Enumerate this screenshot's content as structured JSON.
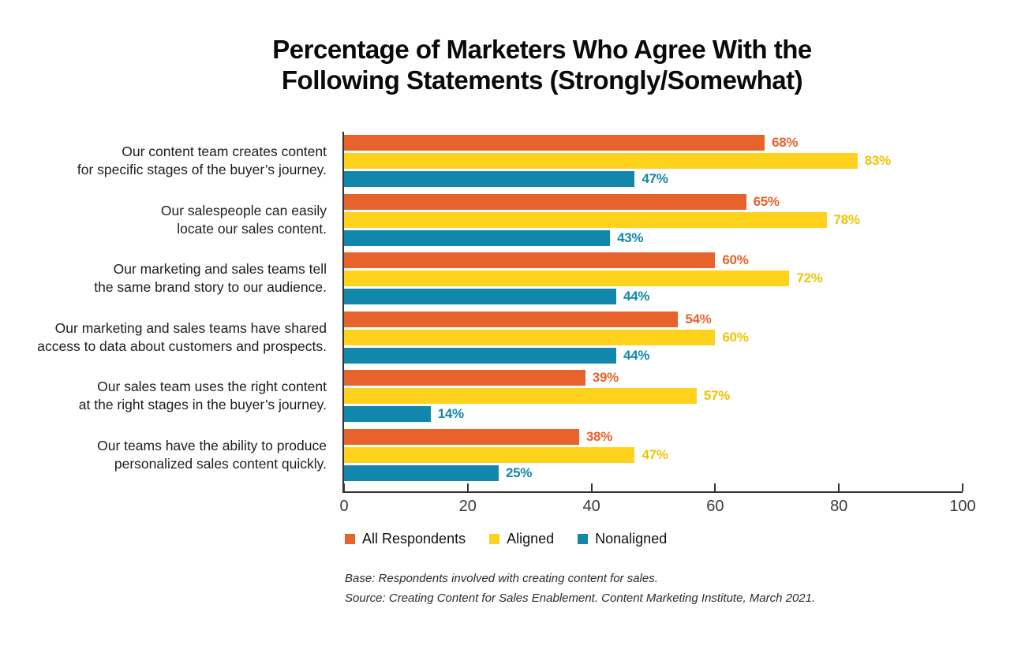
{
  "title": "Percentage of Marketers Who Agree With the\nFollowing Statements (Strongly/Somewhat)",
  "chart_data": {
    "type": "bar",
    "orientation": "horizontal",
    "title": "Percentage of Marketers Who Agree With the Following Statements (Strongly/Somewhat)",
    "categories": [
      "Our content team creates content\nfor specific stages of the buyer’s journey.",
      "Our salespeople can easily\nlocate our sales content.",
      "Our marketing and sales teams tell\nthe same brand story to our audience.",
      "Our marketing and sales teams have shared\naccess to data about customers and prospects.",
      "Our sales team uses the right content\nat the right stages in the buyer’s journey.",
      "Our teams have the ability to produce\npersonalized sales content quickly."
    ],
    "series": [
      {
        "name": "All Respondents",
        "color": "#E8632B",
        "label_color": "#E8632B",
        "values": [
          68,
          65,
          60,
          54,
          39,
          38
        ]
      },
      {
        "name": "Aligned",
        "color": "#FFD21E",
        "label_color": "#F0C400",
        "values": [
          83,
          78,
          72,
          60,
          57,
          47
        ]
      },
      {
        "name": "Nonaligned",
        "color": "#1287AC",
        "label_color": "#1287AC",
        "values": [
          47,
          43,
          44,
          44,
          14,
          25
        ]
      }
    ],
    "value_suffix": "%",
    "xlim": [
      0,
      100
    ],
    "x_ticks": [
      0,
      20,
      40,
      60,
      80,
      100
    ],
    "grid": false,
    "legend_position": "bottom",
    "axis_color": "#333333",
    "tick_label_color": "#3a3a3a"
  },
  "footnotes": {
    "base": "Base: Respondents involved with creating content for sales.",
    "source": "Source: Creating Content for Sales Enablement. Content Marketing Institute, March 2021."
  }
}
